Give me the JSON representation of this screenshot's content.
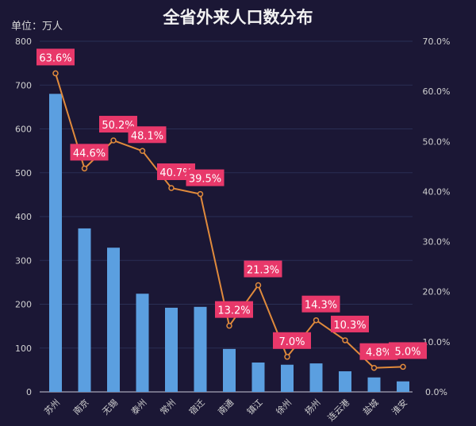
{
  "chart_data": {
    "type": "bar+line",
    "title": "全省外来人口数分布",
    "ylabel": "单位：万人",
    "categories": [
      "苏州",
      "南京",
      "无锡",
      "泰州",
      "常州",
      "宿迁",
      "南通",
      "镇江",
      "徐州",
      "扬州",
      "连云港",
      "盐城",
      "淮安"
    ],
    "series": [
      {
        "type": "bar",
        "axis": "left",
        "values": [
          680,
          373,
          329,
          224,
          192,
          194,
          98,
          67,
          62,
          65,
          47,
          33,
          24
        ]
      },
      {
        "type": "line",
        "axis": "right",
        "values": [
          63.6,
          44.6,
          50.2,
          48.1,
          40.7,
          39.5,
          13.2,
          21.3,
          7.0,
          14.3,
          10.3,
          4.8,
          5.0
        ],
        "labels": [
          "63.6%",
          "44.6%",
          "50.2%",
          "48.1%",
          "40.7%",
          "39.5%",
          "13.2%",
          "21.3%",
          "7.0%",
          "14.3%",
          "10.3%",
          "4.8%",
          "5.0%"
        ]
      }
    ],
    "ylim": [
      0,
      800
    ],
    "yticks": [
      "0",
      "100",
      "200",
      "300",
      "400",
      "500",
      "600",
      "700",
      "800"
    ],
    "y2lim": [
      0,
      70
    ],
    "y2ticks": [
      "0.0%",
      "10.0%",
      "20.0%",
      "30.0%",
      "40.0%",
      "50.0%",
      "60.0%",
      "70.0%"
    ],
    "grid": true,
    "colors": {
      "bar": "#5b9fe0",
      "line": "#e08a3c",
      "label_bg": "#e8386a",
      "background": "#1b1735"
    }
  }
}
